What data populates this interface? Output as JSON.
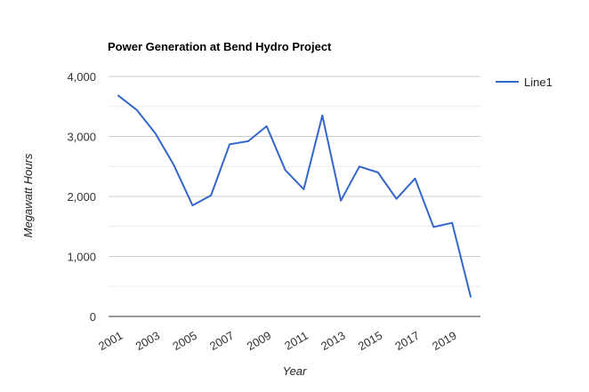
{
  "chart_data": {
    "type": "line",
    "title": "Power Generation at Bend Hydro Project",
    "xlabel": "Year",
    "ylabel": "Megawatt Hours",
    "x": [
      2001,
      2002,
      2003,
      2004,
      2005,
      2006,
      2007,
      2008,
      2009,
      2010,
      2011,
      2012,
      2013,
      2014,
      2015,
      2016,
      2017,
      2018,
      2019,
      2020
    ],
    "x_tick_labels": [
      "2001",
      "2003",
      "2005",
      "2007",
      "2009",
      "2011",
      "2013",
      "2015",
      "2017",
      "2019"
    ],
    "x_tick_values": [
      2001,
      2003,
      2005,
      2007,
      2009,
      2011,
      2013,
      2015,
      2017,
      2019
    ],
    "ylim": [
      0,
      4000
    ],
    "y_ticks": [
      0,
      1000,
      2000,
      3000,
      4000
    ],
    "y_tick_labels": [
      "0",
      "1,000",
      "2,000",
      "3,000",
      "4,000"
    ],
    "grid": true,
    "legend_position": "right",
    "series": [
      {
        "name": "Line1",
        "color": "#3366cc",
        "values": [
          3680,
          3440,
          3050,
          2520,
          1850,
          2020,
          2870,
          2920,
          3170,
          2440,
          2120,
          3350,
          1930,
          2500,
          2400,
          1960,
          2300,
          1490,
          1560,
          330
        ]
      }
    ]
  }
}
